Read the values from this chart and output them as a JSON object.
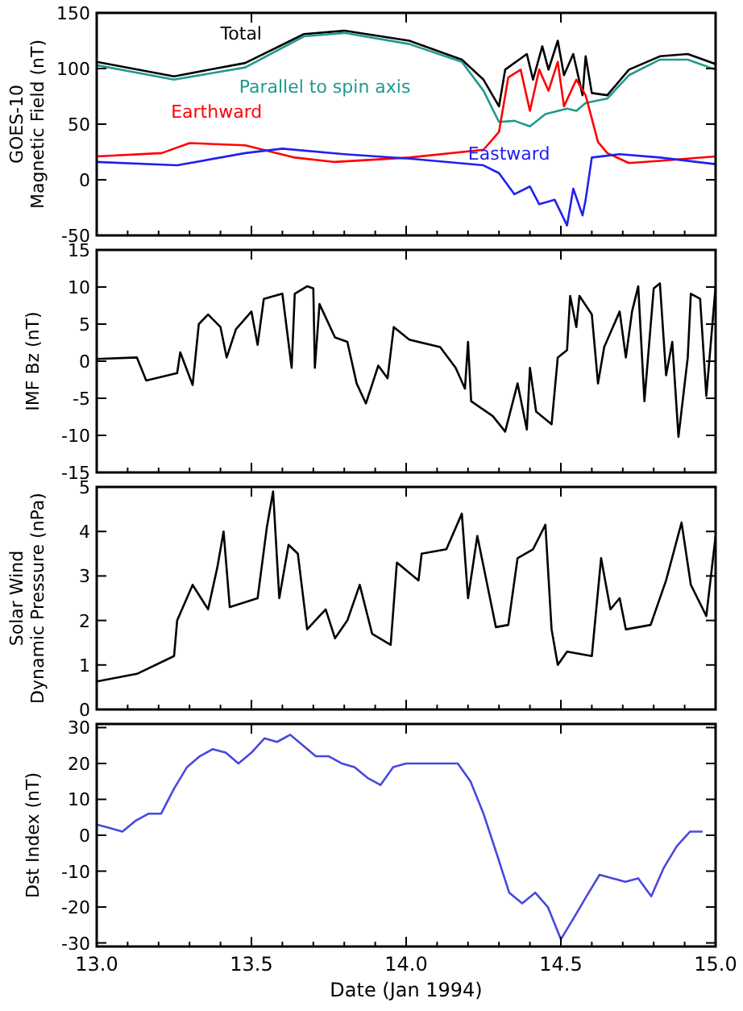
{
  "chart_data": [
    {
      "type": "line",
      "ylabel": "GOES-10 Magnetic Field (nT)",
      "xlim": [
        13,
        15
      ],
      "xticks": [
        13,
        13.5,
        14,
        14.5,
        15
      ],
      "ylim": [
        -50,
        150
      ],
      "yticks": [
        -50,
        0,
        50,
        100,
        150
      ],
      "tick_labels": "y",
      "grid": false,
      "marker": "none",
      "line_style": "solid",
      "series": [
        {
          "name": "Total",
          "color": "#000000",
          "x": [
            13,
            13.25,
            13.48,
            13.67,
            13.8,
            14.01,
            14.18,
            14.25,
            14.3,
            14.32,
            14.39,
            14.41,
            14.44,
            14.46,
            14.49,
            14.51,
            14.54,
            14.57,
            14.58,
            14.6,
            14.65,
            14.72,
            14.82,
            14.91,
            15
          ],
          "values": [
            106,
            93,
            105,
            131,
            134,
            125,
            108,
            90,
            66,
            99,
            113,
            90,
            120,
            99,
            125,
            94,
            113,
            76,
            111,
            78,
            76,
            99,
            111,
            113,
            104
          ]
        },
        {
          "name": "Parallel to spin axis",
          "color": "#20998e",
          "x": [
            13,
            13.25,
            13.48,
            13.67,
            13.8,
            14.01,
            14.18,
            14.25,
            14.3,
            14.35,
            14.4,
            14.45,
            14.52,
            14.55,
            14.58,
            14.65,
            14.72,
            14.82,
            14.91,
            15
          ],
          "values": [
            103,
            90,
            101,
            129,
            132,
            122,
            106,
            80,
            52,
            53,
            48,
            59,
            64,
            62,
            69,
            73,
            94,
            108,
            108,
            99
          ]
        },
        {
          "name": "Earthward",
          "color": "#ff0000",
          "x": [
            13,
            13.21,
            13.3,
            13.48,
            13.64,
            13.77,
            14.01,
            14.25,
            14.3,
            14.33,
            14.37,
            14.4,
            14.43,
            14.46,
            14.49,
            14.51,
            14.55,
            14.58,
            14.62,
            14.65,
            14.72,
            14.82,
            15
          ],
          "values": [
            21,
            24,
            33,
            31,
            20,
            16,
            20,
            27,
            43,
            92,
            99,
            62,
            99,
            80,
            106,
            66,
            90,
            76,
            34,
            24,
            15,
            17,
            21
          ]
        },
        {
          "name": "Eastward",
          "color": "#2020f0",
          "x": [
            13,
            13.26,
            13.48,
            13.6,
            13.8,
            14.01,
            14.25,
            14.3,
            14.35,
            14.4,
            14.43,
            14.48,
            14.52,
            14.54,
            14.57,
            14.58,
            14.6,
            14.69,
            14.82,
            15
          ],
          "values": [
            16,
            13,
            24,
            28,
            23,
            19,
            13,
            6,
            -13,
            -6,
            -22,
            -18,
            -41,
            -8,
            -32,
            -18,
            20,
            23,
            20,
            14
          ]
        }
      ]
    },
    {
      "type": "line",
      "ylabel": "IMF Bz (nT)",
      "xlim": [
        13,
        15
      ],
      "xticks": [
        13,
        13.5,
        14,
        14.5,
        15
      ],
      "ylim": [
        -15,
        15
      ],
      "yticks": [
        -15,
        -10,
        -5,
        0,
        5,
        10,
        15
      ],
      "tick_labels": "y",
      "grid": false,
      "marker": "none",
      "line_style": "solid",
      "series": [
        {
          "color": "#000000",
          "x": [
            13,
            13.13,
            13.16,
            13.26,
            13.27,
            13.31,
            13.33,
            13.36,
            13.4,
            13.42,
            13.45,
            13.5,
            13.52,
            13.54,
            13.6,
            13.63,
            13.64,
            13.68,
            13.7,
            13.705,
            13.72,
            13.77,
            13.81,
            13.84,
            13.87,
            13.91,
            13.94,
            13.96,
            14.01,
            14.11,
            14.16,
            14.19,
            14.2,
            14.21,
            14.28,
            14.32,
            14.36,
            14.39,
            14.4,
            14.42,
            14.47,
            14.49,
            14.52,
            14.53,
            14.55,
            14.56,
            14.6,
            14.62,
            14.64,
            14.69,
            14.71,
            14.73,
            14.75,
            14.77,
            14.8,
            14.82,
            14.84,
            14.86,
            14.88,
            14.91,
            14.92,
            14.95,
            14.97,
            15
          ],
          "values": [
            0.3,
            0.5,
            -2.6,
            -1.6,
            1.2,
            -3.2,
            5,
            6.3,
            4.6,
            0.5,
            4.3,
            6.7,
            2.2,
            8.4,
            9.1,
            -0.9,
            9.1,
            10.1,
            9.8,
            -0.9,
            7.7,
            3.2,
            2.6,
            -3,
            -5.7,
            -0.6,
            -2.3,
            4.6,
            2.9,
            1.9,
            -0.9,
            -3.7,
            2.6,
            -5.4,
            -7.4,
            -9.5,
            -3,
            -9.2,
            -0.9,
            -6.8,
            -8.5,
            0.5,
            1.5,
            8.8,
            4.6,
            8.8,
            6.3,
            -3,
            1.9,
            6.7,
            0.5,
            6.7,
            10.1,
            -5.4,
            9.8,
            10.5,
            -1.9,
            2.6,
            -10.2,
            0.5,
            9.1,
            8.4,
            -4.7,
            10.1
          ]
        }
      ]
    },
    {
      "type": "line",
      "ylabel": "Solar Wind Dynamic Pressure (nPa)",
      "xlim": [
        13,
        15
      ],
      "xticks": [
        13,
        13.5,
        14,
        14.5,
        15
      ],
      "ylim": [
        0,
        5
      ],
      "yticks": [
        0,
        1,
        2,
        3,
        4,
        5
      ],
      "tick_labels": "y",
      "grid": false,
      "marker": "none",
      "line_style": "solid",
      "series": [
        {
          "color": "#000000",
          "x": [
            13,
            13.13,
            13.25,
            13.26,
            13.31,
            13.36,
            13.39,
            13.41,
            13.43,
            13.52,
            13.55,
            13.57,
            13.59,
            13.62,
            13.65,
            13.68,
            13.74,
            13.77,
            13.81,
            13.85,
            13.89,
            13.95,
            13.97,
            14.04,
            14.05,
            14.13,
            14.18,
            14.2,
            14.23,
            14.29,
            14.33,
            14.36,
            14.41,
            14.45,
            14.47,
            14.49,
            14.52,
            14.6,
            14.63,
            14.66,
            14.69,
            14.71,
            14.79,
            14.84,
            14.89,
            14.92,
            14.97,
            15
          ],
          "values": [
            0.63,
            0.8,
            1.2,
            2,
            2.8,
            2.25,
            3.2,
            4,
            2.3,
            2.5,
            4.1,
            4.9,
            2.5,
            3.7,
            3.5,
            1.8,
            2.25,
            1.6,
            2,
            2.8,
            1.7,
            1.45,
            3.3,
            2.9,
            3.5,
            3.6,
            4.4,
            2.5,
            3.9,
            1.85,
            1.9,
            3.4,
            3.6,
            4.15,
            1.8,
            1,
            1.3,
            1.2,
            3.4,
            2.25,
            2.5,
            1.8,
            1.9,
            2.9,
            4.2,
            2.8,
            2.1,
            3.9
          ]
        }
      ]
    },
    {
      "type": "line",
      "xlabel": "Date (Jan 1994)",
      "ylabel": "Dst Index (nT)",
      "xlim": [
        13,
        15
      ],
      "xticks": [
        {
          "value": 13,
          "label": "13.0"
        },
        {
          "value": 13.5,
          "label": "13.5"
        },
        {
          "value": 14,
          "label": "14.0"
        },
        {
          "value": 14.5,
          "label": "14.5"
        },
        {
          "value": 15,
          "label": "15.0"
        }
      ],
      "ylim": [
        -31,
        31
      ],
      "yticks": [
        -30,
        -20,
        -10,
        0,
        10,
        20,
        30
      ],
      "grid": false,
      "marker": "none",
      "line_style": "solid",
      "series": [
        {
          "color": "#4848e0",
          "x": [
            13,
            13.042,
            13.083,
            13.125,
            13.167,
            13.208,
            13.25,
            13.292,
            13.333,
            13.375,
            13.417,
            13.458,
            13.5,
            13.542,
            13.583,
            13.625,
            13.667,
            13.708,
            13.75,
            13.792,
            13.833,
            13.875,
            13.917,
            13.958,
            14,
            14.042,
            14.083,
            14.125,
            14.167,
            14.208,
            14.25,
            14.292,
            14.333,
            14.375,
            14.417,
            14.458,
            14.5,
            14.542,
            14.583,
            14.625,
            14.667,
            14.708,
            14.75,
            14.792,
            14.833,
            14.875,
            14.917,
            14.958
          ],
          "values": [
            3,
            2,
            1,
            4,
            6,
            6,
            13,
            19,
            22,
            24,
            23,
            20,
            23,
            27,
            26,
            28,
            25,
            22,
            22,
            20,
            19,
            16,
            14,
            19,
            20,
            20,
            20,
            20,
            20,
            15,
            6,
            -5,
            -16,
            -19,
            -16,
            -20,
            -29,
            -23,
            -17,
            -11,
            -12,
            -13,
            -12,
            -17,
            -9,
            -3,
            1,
            1
          ]
        }
      ]
    }
  ]
}
